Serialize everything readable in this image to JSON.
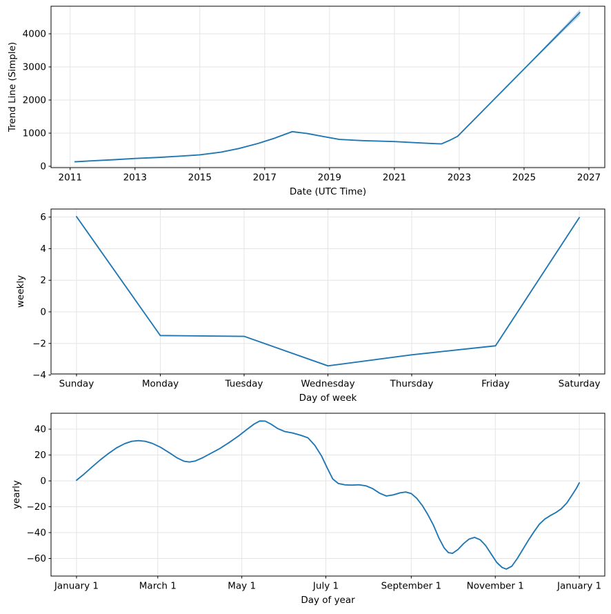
{
  "figure": {
    "background": "#ffffff",
    "line_color": "#1f77b4",
    "band_color": "rgba(31,119,180,0.28)",
    "grid_color": "#e4e4e4",
    "spine_color": "#000000",
    "text_color": "#000000"
  },
  "chart_data": [
    {
      "id": "trend",
      "type": "line",
      "xlabel": "Date (UTC Time)",
      "ylabel": "Trend Line (Simple)",
      "xlim": [
        2010.41,
        2027.49
      ],
      "ylim": [
        -42,
        4833
      ],
      "grid": true,
      "legend": "none",
      "xticks": {
        "values": [
          2011,
          2013,
          2015,
          2017,
          2019,
          2021,
          2023,
          2025,
          2027
        ],
        "labels": [
          "2011",
          "2013",
          "2015",
          "2017",
          "2019",
          "2021",
          "2023",
          "2025",
          "2027"
        ]
      },
      "yticks": {
        "values": [
          0,
          1000,
          2000,
          3000,
          4000
        ],
        "labels": [
          "0",
          "1000",
          "2000",
          "3000",
          "4000"
        ]
      },
      "series": [
        {
          "name": "trend",
          "x": [
            2011.15,
            2011.7,
            2012.4,
            2013.0,
            2013.7,
            2014.4,
            2015.0,
            2015.65,
            2016.2,
            2016.8,
            2017.3,
            2017.85,
            2018.3,
            2018.8,
            2019.3,
            2020.0,
            2021.0,
            2021.8,
            2022.45,
            2022.7,
            2022.95,
            2024.0,
            2025.0,
            2026.0,
            2026.72
          ],
          "y": [
            135,
            165,
            200,
            235,
            265,
            305,
            345,
            425,
            535,
            690,
            845,
            1045,
            990,
            900,
            810,
            775,
            745,
            705,
            675,
            780,
            905,
            1945,
            2937,
            3928,
            4640
          ]
        }
      ],
      "band": {
        "x": [
          2022.95,
          2024.0,
          2025.0,
          2025.8,
          2026.3,
          2026.72
        ],
        "upper": [
          905,
          1952,
          2952,
          3778,
          4292,
          4738
        ],
        "lower": [
          905,
          1938,
          2922,
          3682,
          4158,
          4542
        ]
      }
    },
    {
      "id": "weekly",
      "type": "line",
      "xlabel": "Day of week",
      "ylabel": "weekly",
      "xlim": [
        -0.304,
        6.304
      ],
      "ylim": [
        -3.93,
        6.51
      ],
      "grid": true,
      "legend": "none",
      "xticks": {
        "values": [
          0,
          1,
          2,
          3,
          4,
          5,
          6
        ],
        "labels": [
          "Sunday",
          "Monday",
          "Tuesday",
          "Wednesday",
          "Thursday",
          "Friday",
          "Saturday"
        ]
      },
      "yticks": {
        "values": [
          -4,
          -2,
          0,
          2,
          4,
          6
        ],
        "labels": [
          "−4",
          "−2",
          "0",
          "2",
          "4",
          "6"
        ]
      },
      "series": [
        {
          "name": "weekly",
          "x": [
            0,
            1,
            2,
            3,
            4,
            5,
            6
          ],
          "y": [
            6.03,
            -1.5,
            -1.55,
            -3.42,
            -2.72,
            -2.15,
            5.97
          ]
        }
      ]
    },
    {
      "id": "yearly",
      "type": "line",
      "xlabel": "Day of year",
      "ylabel": "yearly",
      "xlim": [
        -17.5,
        384.5
      ],
      "ylim": [
        -73.6,
        52.3
      ],
      "grid": true,
      "legend": "none",
      "xticks": {
        "values": [
          1,
          60,
          121,
          182,
          244,
          305,
          366
        ],
        "labels": [
          "January 1",
          "March 1",
          "May 1",
          "July 1",
          "September 1",
          "November 1",
          "January 1"
        ]
      },
      "yticks": {
        "values": [
          -60,
          -40,
          -20,
          0,
          20,
          40
        ],
        "labels": [
          "−60",
          "−40",
          "−20",
          "0",
          "20",
          "40"
        ]
      },
      "series": [
        {
          "name": "yearly",
          "x": [
            1,
            6,
            12,
            18,
            24,
            30,
            36,
            41,
            46,
            51,
            56,
            62,
            68,
            74,
            79,
            83,
            87,
            92,
            98,
            105,
            112,
            119,
            125,
            130,
            134,
            138,
            142,
            147,
            152,
            158,
            164,
            169,
            174,
            179,
            183,
            187,
            191,
            196,
            201,
            206,
            211,
            216,
            221,
            226,
            231,
            236,
            240,
            244,
            248,
            252,
            256,
            260,
            264,
            268,
            271,
            274,
            278,
            282,
            286,
            290,
            294,
            298,
            302,
            306,
            310,
            313,
            317,
            321,
            325,
            329,
            333,
            337,
            341,
            345,
            349,
            353,
            357,
            361,
            364,
            366
          ],
          "y": [
            0.5,
            4.8,
            10.5,
            16,
            21,
            25.5,
            28.8,
            30.6,
            31.1,
            30.6,
            29,
            26,
            22,
            17.8,
            15.2,
            14.6,
            15.3,
            17.6,
            21,
            25,
            29.8,
            35,
            40,
            44,
            46.3,
            46.2,
            44,
            40.5,
            38.2,
            37,
            35.2,
            33.3,
            27.5,
            19,
            10,
            1.5,
            -2,
            -3.1,
            -3.3,
            -3,
            -3.8,
            -6,
            -9.5,
            -11.7,
            -10.8,
            -9.2,
            -8.6,
            -9.8,
            -13.5,
            -19,
            -26,
            -34,
            -44,
            -52,
            -55.5,
            -56,
            -53,
            -48.5,
            -45,
            -43.7,
            -45.5,
            -50,
            -56.5,
            -63,
            -67,
            -68.2,
            -66,
            -60,
            -53,
            -46,
            -39.5,
            -33.5,
            -29.5,
            -26.8,
            -24.5,
            -21.5,
            -17,
            -10.5,
            -5.5,
            -1.5
          ]
        }
      ]
    }
  ]
}
